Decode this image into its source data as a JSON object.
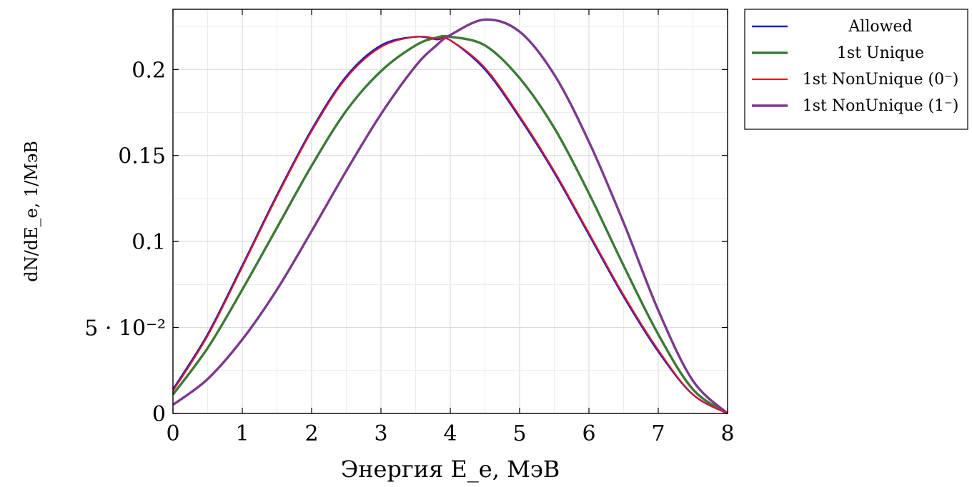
{
  "chart_data": {
    "type": "line",
    "xlabel": "Энергия E_e, МэВ",
    "ylabel": "dN/dE_e, 1/МэВ",
    "xlim": [
      0,
      8
    ],
    "ylim": [
      0,
      0.235
    ],
    "grid": true,
    "legend_position": "outside-right-top",
    "x_ticks": [
      0,
      1,
      2,
      3,
      4,
      5,
      6,
      7,
      8
    ],
    "x_tick_labels": [
      "0",
      "1",
      "2",
      "3",
      "4",
      "5",
      "6",
      "7",
      "8"
    ],
    "y_ticks": [
      0,
      0.05,
      0.1,
      0.15,
      0.2
    ],
    "y_tick_labels": [
      "0",
      "5 · 10⁻²",
      "0.1",
      "0.15",
      "0.2"
    ],
    "x": [
      0,
      0.5,
      1,
      1.5,
      2,
      2.5,
      3,
      3.5,
      3.8,
      4,
      4.5,
      5,
      5.5,
      6,
      6.5,
      7,
      7.5,
      8
    ],
    "series": [
      {
        "name": "Allowed",
        "color": "#1f1fd1",
        "values": [
          0.014,
          0.046,
          0.086,
          0.127,
          0.165,
          0.196,
          0.214,
          0.219,
          0.2175,
          0.217,
          0.2,
          0.172,
          0.14,
          0.104,
          0.068,
          0.036,
          0.011,
          0
        ]
      },
      {
        "name": "1st Unique",
        "color": "#3c7a36",
        "values": [
          0.011,
          0.038,
          0.072,
          0.108,
          0.144,
          0.176,
          0.199,
          0.214,
          0.2185,
          0.219,
          0.214,
          0.195,
          0.166,
          0.128,
          0.086,
          0.046,
          0.014,
          0
        ]
      },
      {
        "name": "1st NonUnique (0⁻)",
        "color": "#e8141e",
        "values": [
          0.013,
          0.045,
          0.085,
          0.126,
          0.164,
          0.195,
          0.213,
          0.219,
          0.218,
          0.217,
          0.201,
          0.173,
          0.141,
          0.105,
          0.069,
          0.037,
          0.011,
          0
        ]
      },
      {
        "name": "1st NonUnique (1⁻)",
        "color": "#7b3a8c",
        "values": [
          0.005,
          0.02,
          0.043,
          0.072,
          0.106,
          0.141,
          0.174,
          0.202,
          0.214,
          0.22,
          0.229,
          0.222,
          0.197,
          0.158,
          0.111,
          0.06,
          0.019,
          0
        ]
      }
    ]
  }
}
